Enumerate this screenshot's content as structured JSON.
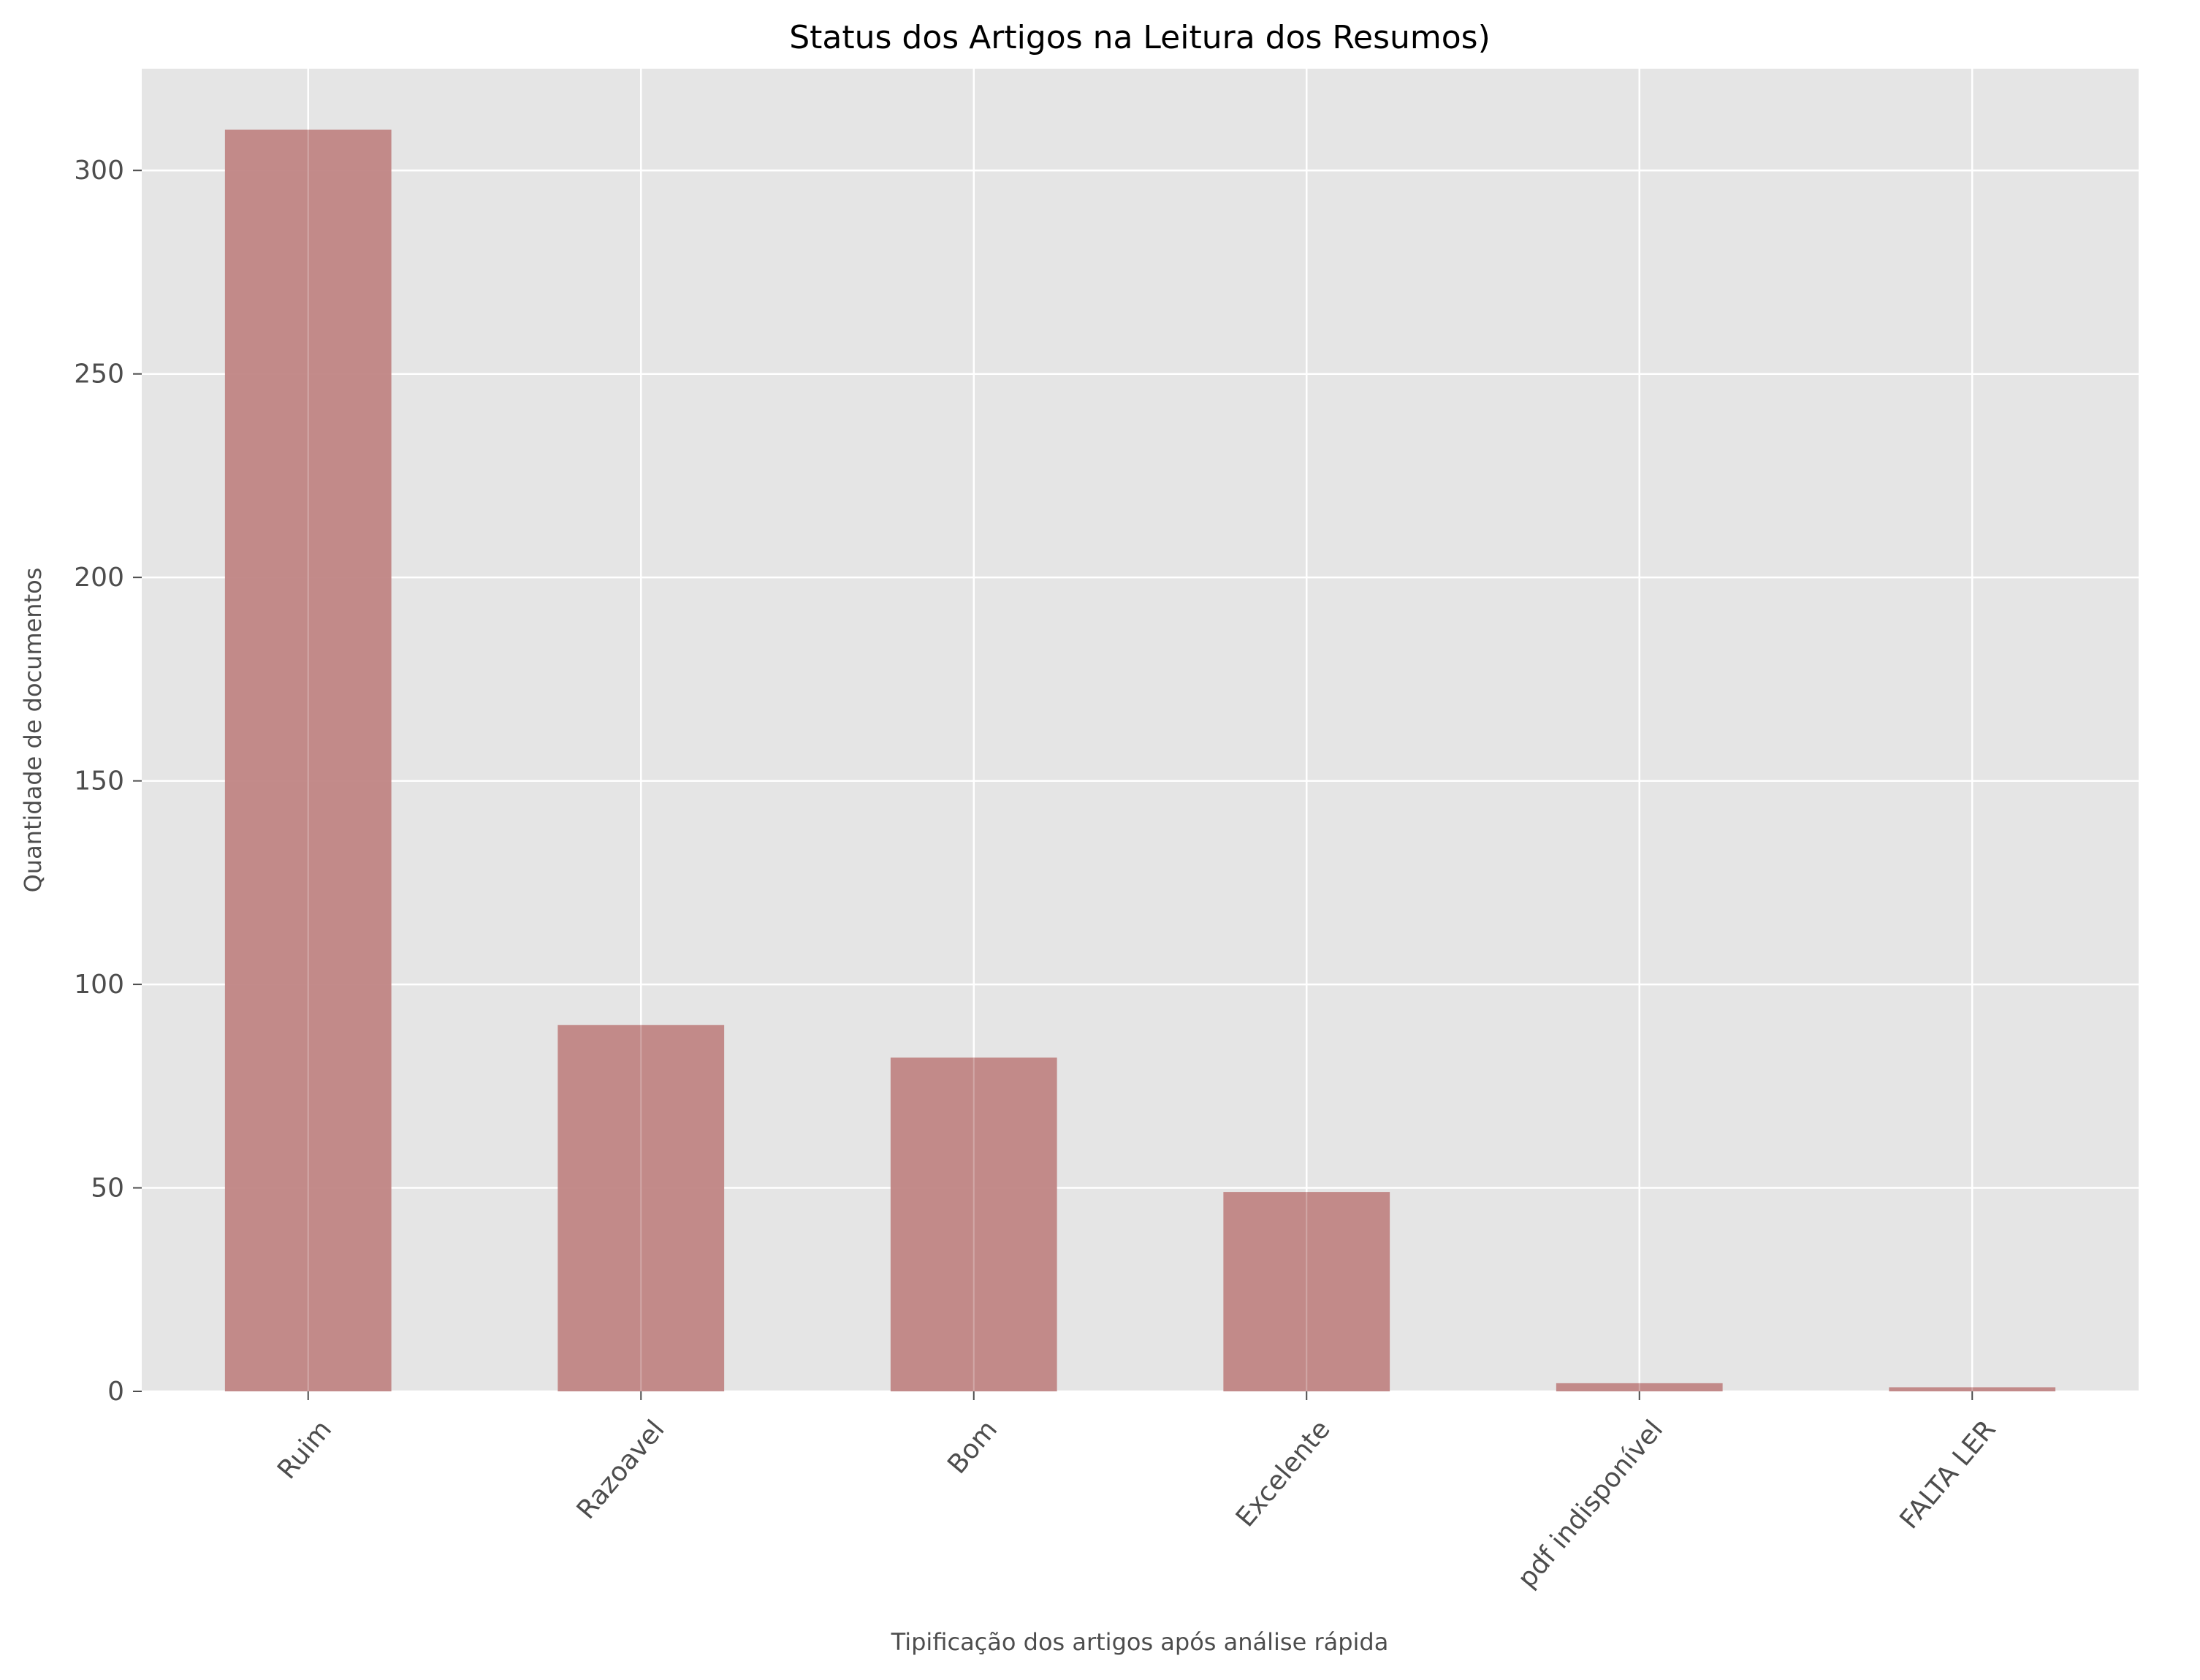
{
  "chart_data": {
    "type": "bar",
    "title": "Status dos Artigos na Leitura dos Resumos)",
    "xlabel": "Tipificação dos artigos após análise rápida",
    "ylabel": "Quantidade de documentos",
    "categories": [
      "Ruim",
      "Razoavel",
      "Bom",
      "Excelente",
      "pdf indisponível",
      "FALTA LER"
    ],
    "values": [
      310,
      90,
      82,
      49,
      2,
      1
    ],
    "ylim": [
      0,
      325
    ],
    "yticks": [
      "0",
      "50",
      "100",
      "150",
      "200",
      "250",
      "300"
    ],
    "grid": true,
    "legend": "none",
    "colors": {
      "bar": "#c08584",
      "plot_background": "#e5e5e5",
      "grid": "#ffffff"
    }
  }
}
